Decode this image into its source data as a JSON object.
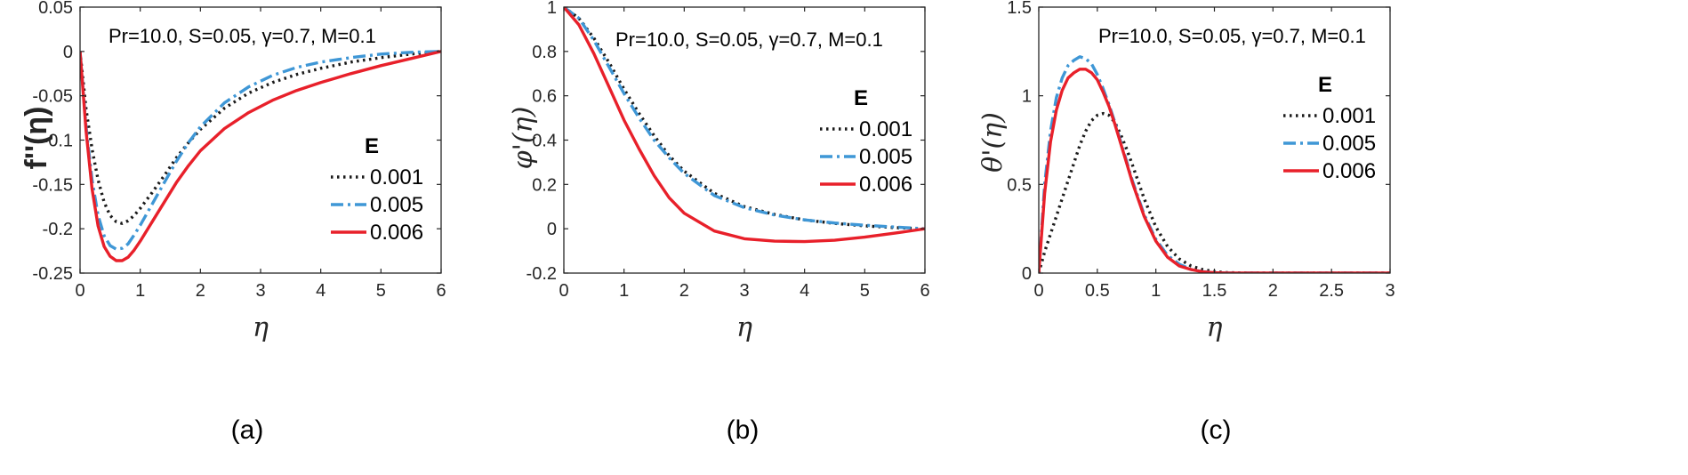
{
  "chart_data": [
    {
      "type": "line",
      "panel_label": "(a)",
      "annotation": "Pr=10.0, S=0.05, γ=0.7, M=0.1",
      "xlabel": "η",
      "ylabel": "f''(η)",
      "xlim": [
        0,
        6
      ],
      "ylim": [
        -0.25,
        0.05
      ],
      "xticks": [
        0,
        1,
        2,
        3,
        4,
        5,
        6
      ],
      "xtick_labels": [
        "0",
        "1",
        "2",
        "3",
        "4",
        "5",
        "6"
      ],
      "yticks": [
        0.05,
        0,
        -0.05,
        -0.1,
        -0.15,
        -0.2,
        -0.25
      ],
      "ytick_labels": [
        "0.05",
        "0",
        "-0.05",
        "-0.1",
        "-0.15",
        "-0.2",
        "-0.25"
      ],
      "legend_title": "E",
      "series": [
        {
          "name": "0.001",
          "color": "#1a1a1a",
          "style": "dotted",
          "x": [
            0,
            0.1,
            0.2,
            0.3,
            0.4,
            0.5,
            0.6,
            0.7,
            0.8,
            0.9,
            1,
            1.2,
            1.4,
            1.6,
            1.8,
            2,
            2.4,
            2.8,
            3.2,
            3.6,
            4,
            4.5,
            5,
            5.5,
            6
          ],
          "y": [
            0,
            -0.065,
            -0.11,
            -0.145,
            -0.17,
            -0.185,
            -0.192,
            -0.194,
            -0.191,
            -0.185,
            -0.177,
            -0.159,
            -0.14,
            -0.12,
            -0.103,
            -0.088,
            -0.064,
            -0.047,
            -0.035,
            -0.026,
            -0.019,
            -0.012,
            -0.007,
            -0.003,
            0
          ]
        },
        {
          "name": "0.005",
          "color": "#3f97d6",
          "style": "dashdot",
          "x": [
            0,
            0.1,
            0.2,
            0.3,
            0.4,
            0.5,
            0.6,
            0.7,
            0.8,
            0.9,
            1,
            1.2,
            1.4,
            1.6,
            1.8,
            2,
            2.4,
            2.8,
            3.2,
            3.6,
            4,
            4.5,
            5,
            5.5,
            6
          ],
          "y": [
            0,
            -0.085,
            -0.145,
            -0.185,
            -0.208,
            -0.219,
            -0.223,
            -0.222,
            -0.217,
            -0.207,
            -0.196,
            -0.172,
            -0.148,
            -0.124,
            -0.103,
            -0.085,
            -0.058,
            -0.04,
            -0.027,
            -0.018,
            -0.012,
            -0.007,
            -0.003,
            -0.001,
            0
          ]
        },
        {
          "name": "0.006",
          "color": "#e8202a",
          "style": "solid",
          "x": [
            0,
            0.1,
            0.2,
            0.3,
            0.4,
            0.5,
            0.6,
            0.7,
            0.8,
            0.9,
            1,
            1.2,
            1.4,
            1.6,
            1.8,
            2,
            2.4,
            2.8,
            3.2,
            3.6,
            4,
            4.5,
            5,
            5.5,
            6
          ],
          "y": [
            0,
            -0.09,
            -0.155,
            -0.197,
            -0.22,
            -0.231,
            -0.236,
            -0.236,
            -0.232,
            -0.224,
            -0.214,
            -0.192,
            -0.17,
            -0.148,
            -0.129,
            -0.112,
            -0.087,
            -0.069,
            -0.055,
            -0.044,
            -0.035,
            -0.025,
            -0.016,
            -0.008,
            0
          ]
        }
      ]
    },
    {
      "type": "line",
      "panel_label": "(b)",
      "annotation": "Pr=10.0, S=0.05, γ=0.7, M=0.1",
      "xlabel": "η",
      "ylabel": "φ'(η)",
      "xlim": [
        0,
        6
      ],
      "ylim": [
        -0.2,
        1
      ],
      "xticks": [
        0,
        1,
        2,
        3,
        4,
        5,
        6
      ],
      "xtick_labels": [
        "0",
        "1",
        "2",
        "3",
        "4",
        "5",
        "6"
      ],
      "yticks": [
        1,
        0.8,
        0.6,
        0.4,
        0.2,
        0,
        -0.2
      ],
      "ytick_labels": [
        "1",
        "0.8",
        "0.6",
        "0.4",
        "0.2",
        "0",
        "-0.2"
      ],
      "legend_title": "E",
      "series": [
        {
          "name": "0.001",
          "color": "#1a1a1a",
          "style": "dotted",
          "x": [
            0,
            0.25,
            0.5,
            0.75,
            1,
            1.25,
            1.5,
            1.75,
            2,
            2.5,
            3,
            3.5,
            4,
            4.5,
            5,
            5.5,
            6
          ],
          "y": [
            1,
            0.95,
            0.86,
            0.75,
            0.63,
            0.52,
            0.42,
            0.33,
            0.26,
            0.16,
            0.1,
            0.065,
            0.04,
            0.024,
            0.013,
            0.005,
            0
          ]
        },
        {
          "name": "0.005",
          "color": "#3f97d6",
          "style": "dashdot",
          "x": [
            0,
            0.25,
            0.5,
            0.75,
            1,
            1.25,
            1.5,
            1.75,
            2,
            2.5,
            3,
            3.5,
            4,
            4.5,
            5,
            5.5,
            6
          ],
          "y": [
            1,
            0.95,
            0.85,
            0.73,
            0.61,
            0.5,
            0.4,
            0.32,
            0.25,
            0.15,
            0.095,
            0.062,
            0.04,
            0.026,
            0.016,
            0.008,
            0
          ]
        },
        {
          "name": "0.006",
          "color": "#e8202a",
          "style": "solid",
          "x": [
            0,
            0.25,
            0.5,
            0.75,
            1,
            1.25,
            1.5,
            1.75,
            2,
            2.5,
            3,
            3.5,
            4,
            4.5,
            5,
            5.5,
            6
          ],
          "y": [
            1,
            0.92,
            0.79,
            0.64,
            0.49,
            0.36,
            0.24,
            0.14,
            0.07,
            -0.01,
            -0.045,
            -0.056,
            -0.058,
            -0.052,
            -0.038,
            -0.02,
            0
          ]
        }
      ]
    },
    {
      "type": "line",
      "panel_label": "(c)",
      "annotation": "Pr=10.0, S=0.05, γ=0.7, M=0.1",
      "xlabel": "η",
      "ylabel": "θ'(η)",
      "xlim": [
        0,
        3
      ],
      "ylim": [
        0,
        1.5
      ],
      "xticks": [
        0,
        0.5,
        1,
        1.5,
        2,
        2.5,
        3
      ],
      "xtick_labels": [
        "0",
        "0.5",
        "1",
        "1.5",
        "2",
        "2.5",
        "3"
      ],
      "yticks": [
        1.5,
        1,
        0.5,
        0
      ],
      "ytick_labels": [
        "1.5",
        "1",
        "0.5",
        "0"
      ],
      "legend_title": "E",
      "series": [
        {
          "name": "0.001",
          "color": "#1a1a1a",
          "style": "dotted",
          "x": [
            0,
            0.05,
            0.1,
            0.15,
            0.2,
            0.25,
            0.3,
            0.35,
            0.4,
            0.45,
            0.5,
            0.55,
            0.6,
            0.65,
            0.7,
            0.75,
            0.8,
            0.9,
            1,
            1.1,
            1.2,
            1.3,
            1.4,
            1.5,
            1.6,
            1.8,
            2,
            2.5,
            3
          ],
          "y": [
            0,
            0.12,
            0.22,
            0.32,
            0.42,
            0.52,
            0.62,
            0.72,
            0.8,
            0.86,
            0.89,
            0.9,
            0.89,
            0.85,
            0.78,
            0.7,
            0.61,
            0.42,
            0.26,
            0.15,
            0.08,
            0.04,
            0.02,
            0.008,
            0.003,
            0,
            0,
            0,
            0
          ]
        },
        {
          "name": "0.005",
          "color": "#3f97d6",
          "style": "dashdot",
          "x": [
            0,
            0.05,
            0.1,
            0.15,
            0.2,
            0.25,
            0.3,
            0.35,
            0.4,
            0.45,
            0.5,
            0.55,
            0.6,
            0.65,
            0.7,
            0.75,
            0.8,
            0.9,
            1,
            1.1,
            1.2,
            1.3,
            1.4,
            1.5,
            1.6,
            1.8,
            2,
            2.5,
            3
          ],
          "y": [
            0,
            0.5,
            0.8,
            0.99,
            1.1,
            1.17,
            1.2,
            1.22,
            1.21,
            1.18,
            1.12,
            1.04,
            0.95,
            0.85,
            0.74,
            0.63,
            0.52,
            0.33,
            0.19,
            0.1,
            0.05,
            0.02,
            0.008,
            0.003,
            0,
            0,
            0,
            0,
            0
          ]
        },
        {
          "name": "0.006",
          "color": "#e8202a",
          "style": "solid",
          "x": [
            0,
            0.05,
            0.1,
            0.15,
            0.2,
            0.25,
            0.3,
            0.35,
            0.4,
            0.45,
            0.5,
            0.55,
            0.6,
            0.65,
            0.7,
            0.75,
            0.8,
            0.9,
            1,
            1.1,
            1.2,
            1.3,
            1.4,
            1.5,
            1.6,
            1.8,
            2,
            2.5,
            3
          ],
          "y": [
            0,
            0.45,
            0.74,
            0.92,
            1.03,
            1.1,
            1.13,
            1.15,
            1.15,
            1.13,
            1.09,
            1.02,
            0.94,
            0.84,
            0.73,
            0.62,
            0.51,
            0.32,
            0.18,
            0.09,
            0.04,
            0.02,
            0.007,
            0.002,
            0,
            0,
            0,
            0,
            0
          ]
        }
      ]
    }
  ]
}
